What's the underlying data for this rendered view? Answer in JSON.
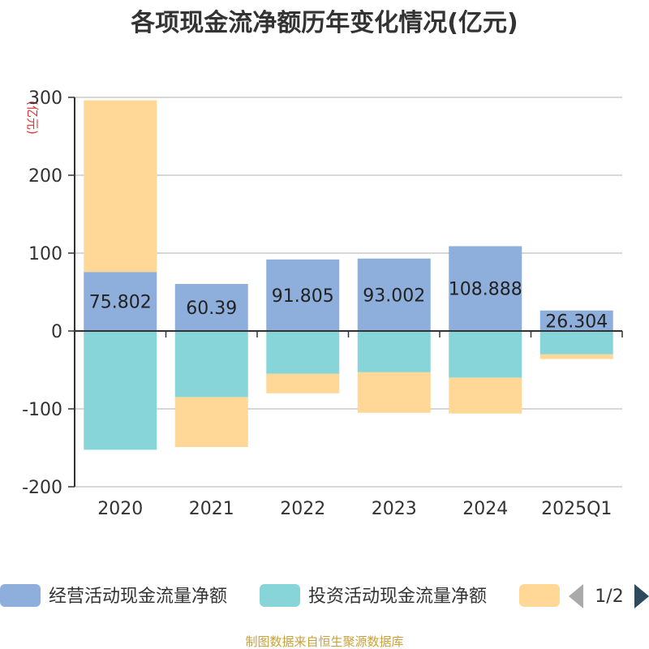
{
  "chart_data": {
    "type": "bar",
    "stacked": true,
    "title": "各项现金流净额历年变化情况(亿元)",
    "ylabel": "(亿元)",
    "xlabel": "",
    "ylim": [
      -200,
      300
    ],
    "yticks": [
      "300",
      "200",
      "100",
      "0",
      "-100",
      "-200"
    ],
    "categories": [
      "2020",
      "2021",
      "2022",
      "2023",
      "2024",
      "2025Q1"
    ],
    "series": [
      {
        "name": "经营活动现金流量净额",
        "color": "#8eaedb",
        "values": [
          75.802,
          60.39,
          91.805,
          93.002,
          108.888,
          26.304
        ],
        "labels": [
          "75.802",
          "60.39",
          "91.805",
          "93.002",
          "108.888",
          "26.304"
        ]
      },
      {
        "name": "投资活动现金流量净额",
        "color": "#87d5d8",
        "values": [
          -152.5,
          -85,
          -55,
          -53,
          -60,
          -30
        ]
      },
      {
        "name": "",
        "color": "#ffd898",
        "values": [
          220.5,
          -64,
          -25,
          -52,
          -46,
          -6
        ]
      }
    ],
    "legend": {
      "page": "1/2"
    },
    "grid": true,
    "source": "制图数据来自恒生聚源数据库"
  }
}
